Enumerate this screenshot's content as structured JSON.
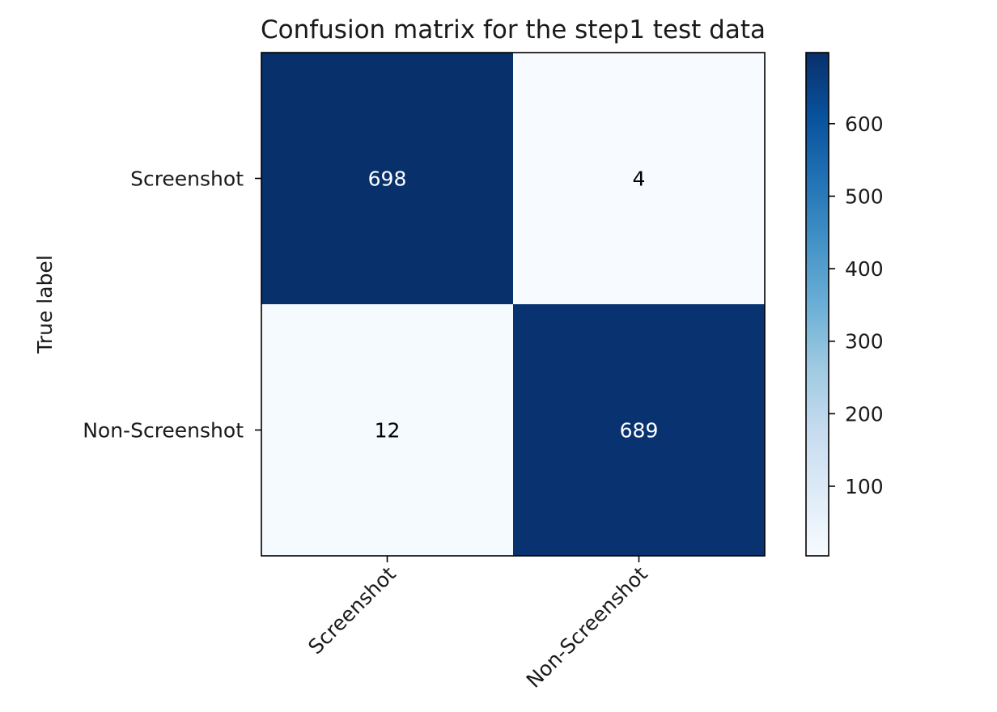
{
  "chart_data": {
    "type": "heatmap",
    "title": "Confusion matrix for the step1 test data",
    "ylabel": "True label",
    "xlabel": "",
    "row_labels": [
      "Screenshot",
      "Non-Screenshot"
    ],
    "col_labels": [
      "Screenshot",
      "Non-Screenshot"
    ],
    "values": [
      [
        698,
        4
      ],
      [
        12,
        689
      ]
    ],
    "colormap": "Blues",
    "colorbar": {
      "min": 4,
      "max": 698,
      "ticks": [
        100,
        200,
        300,
        400,
        500,
        600
      ]
    },
    "colors": {
      "low": "#f7fbff",
      "high": "#08306b",
      "text_on_dark": "#ffffff",
      "text_on_light": "#000000"
    }
  }
}
